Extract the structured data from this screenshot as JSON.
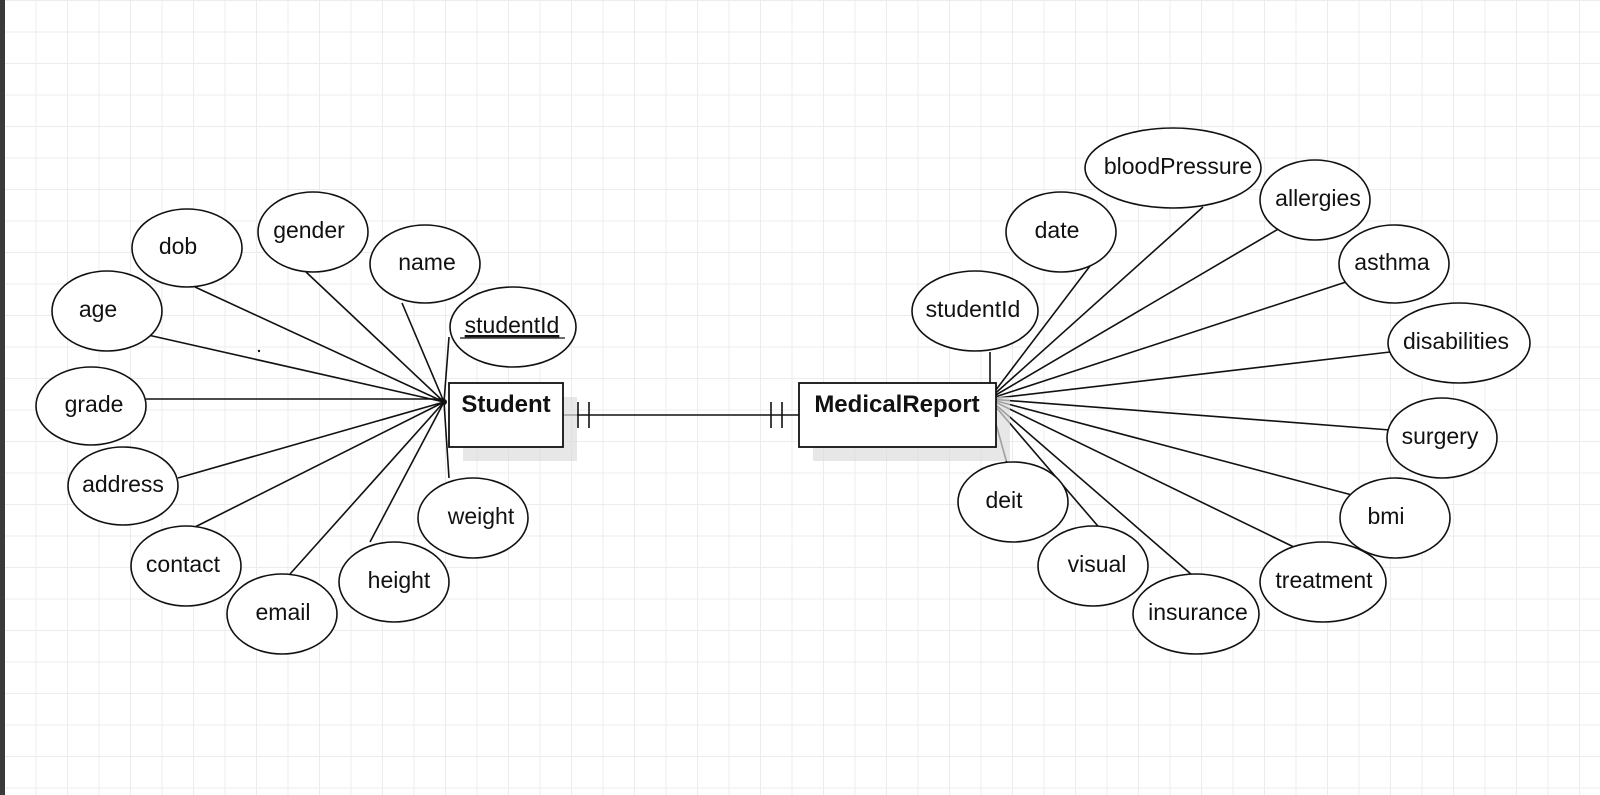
{
  "entities": {
    "student": {
      "label": "Student",
      "attributes": [
        {
          "label": "dob"
        },
        {
          "label": "gender"
        },
        {
          "label": "name"
        },
        {
          "label": "studentId",
          "key": true
        },
        {
          "label": "age"
        },
        {
          "label": "grade"
        },
        {
          "label": "address"
        },
        {
          "label": "contact"
        },
        {
          "label": "email"
        },
        {
          "label": "height"
        },
        {
          "label": "weight"
        }
      ]
    },
    "medical_report": {
      "label": "MedicalReport",
      "attributes": [
        {
          "label": "bloodPressure"
        },
        {
          "label": "allergies"
        },
        {
          "label": "date"
        },
        {
          "label": "asthma"
        },
        {
          "label": "studentId"
        },
        {
          "label": "disabilities"
        },
        {
          "label": "surgery"
        },
        {
          "label": "deit"
        },
        {
          "label": "bmi"
        },
        {
          "label": "visual"
        },
        {
          "label": "treatment"
        },
        {
          "label": "insurance"
        }
      ]
    }
  },
  "relationship": {
    "from": "Student",
    "to": "MedicalReport",
    "cardinality_from": "one-and-only-one",
    "cardinality_to": "one-and-only-one"
  },
  "colors": {
    "stroke": "#111111",
    "grid": "#ececec",
    "background": "#ffffff"
  }
}
